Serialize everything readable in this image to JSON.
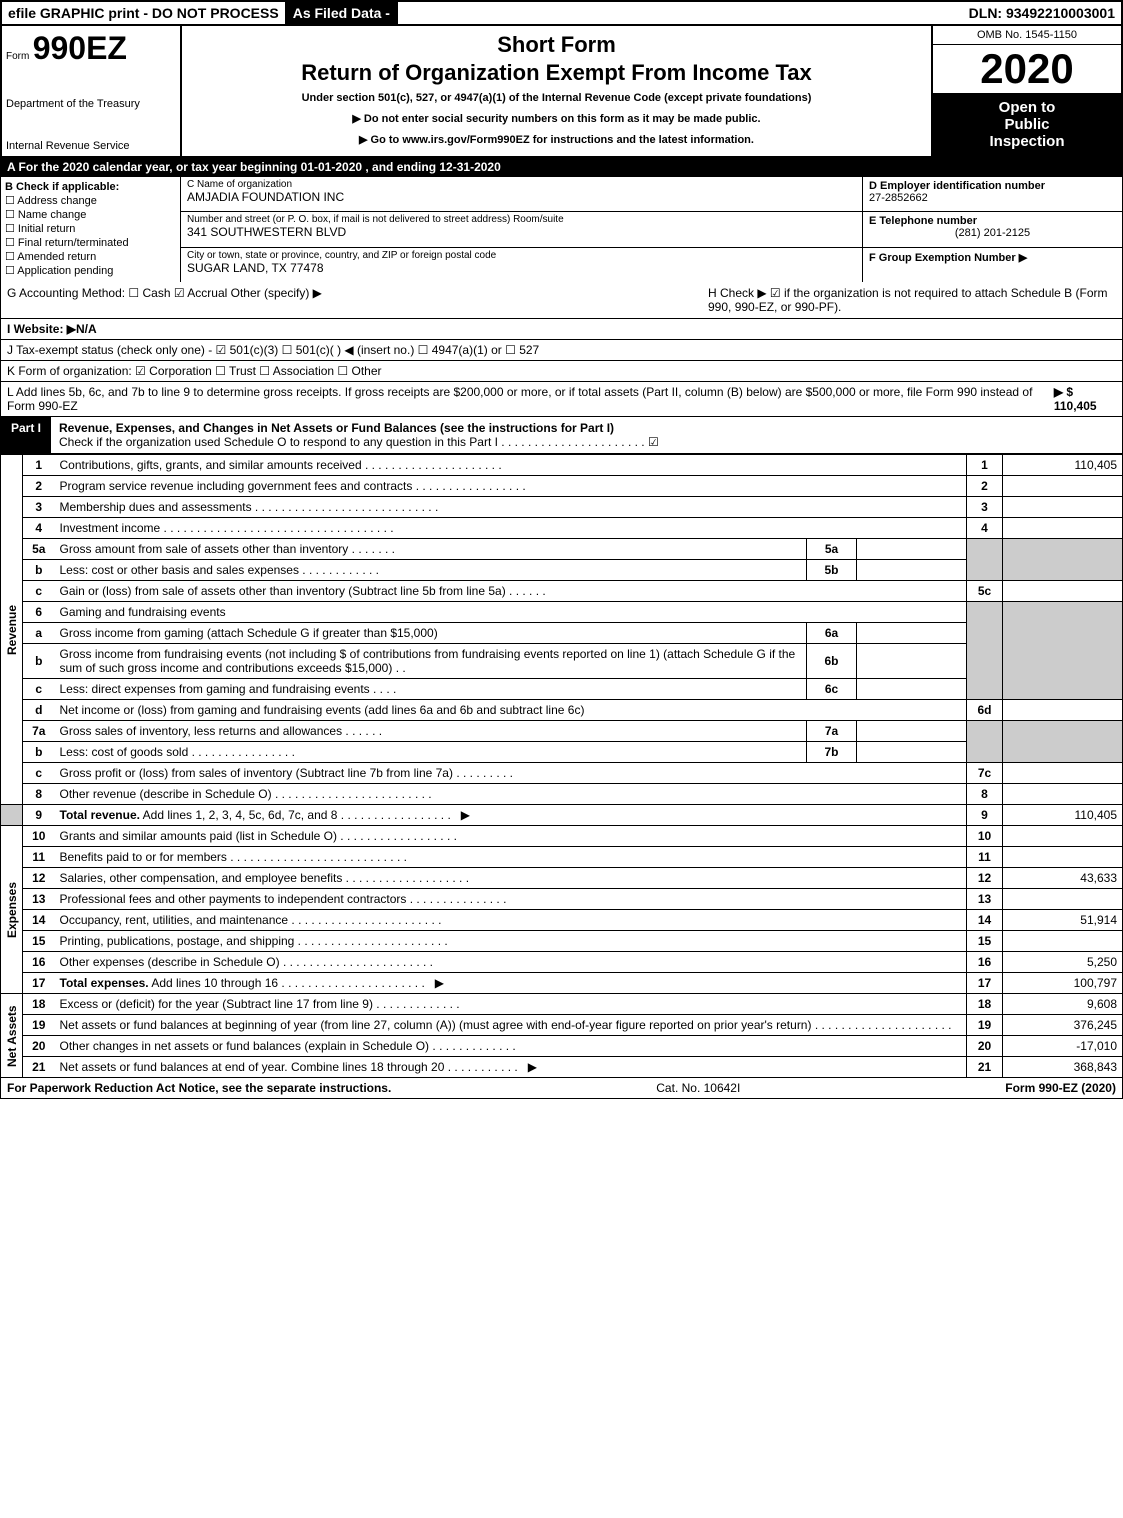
{
  "top": {
    "efile": "efile GRAPHIC print - DO NOT PROCESS",
    "as_filed": "As Filed Data -",
    "dln": "DLN: 93492210003001"
  },
  "header": {
    "form_prefix": "Form",
    "form_num": "990EZ",
    "dept1": "Department of the Treasury",
    "dept2": "Internal Revenue Service",
    "short_form": "Short Form",
    "title": "Return of Organization Exempt From Income Tax",
    "under": "Under section 501(c), 527, or 4947(a)(1) of the Internal Revenue Code (except private foundations)",
    "arrow1": "▶ Do not enter social security numbers on this form as it may be made public.",
    "arrow2": "▶ Go to www.irs.gov/Form990EZ for instructions and the latest information.",
    "omb": "OMB No. 1545-1150",
    "year": "2020",
    "open1": "Open to",
    "open2": "Public",
    "open3": "Inspection"
  },
  "rowA": "A  For the 2020 calendar year, or tax year beginning 01-01-2020 , and ending 12-31-2020",
  "B": {
    "label": "B  Check if applicable:",
    "c1": "☐ Address change",
    "c2": "☐ Name change",
    "c3": "☐ Initial return",
    "c4": "☐ Final return/terminated",
    "c5": "☐ Amended return",
    "c6": "☐ Application pending"
  },
  "C": {
    "name_lbl": "C Name of organization",
    "name": "AMJADIA FOUNDATION INC",
    "addr_lbl": "Number and street (or P. O. box, if mail is not delivered to street address)  Room/suite",
    "addr": "341 SOUTHWESTERN BLVD",
    "city_lbl": "City or town, state or province, country, and ZIP or foreign postal code",
    "city": "SUGAR LAND, TX  77478"
  },
  "right": {
    "D_lbl": "D Employer identification number",
    "D_val": "27-2852662",
    "E_lbl": "E Telephone number",
    "E_val": "(281) 201-2125",
    "F_lbl": "F Group Exemption Number  ▶"
  },
  "G": {
    "left": "G Accounting Method:   ☐ Cash   ☑ Accrual   Other (specify) ▶",
    "right": "H   Check ▶  ☑ if the organization is not required to attach Schedule B (Form 990, 990-EZ, or 990-PF)."
  },
  "I": "I Website: ▶N/A",
  "J": "J Tax-exempt status (check only one) - ☑ 501(c)(3)  ☐ 501(c)(  ) ◀ (insert no.) ☐ 4947(a)(1) or ☐ 527",
  "K": "K Form of organization:   ☑ Corporation  ☐ Trust  ☐ Association  ☐ Other",
  "L": {
    "text": "L Add lines 5b, 6c, and 7b to line 9 to determine gross receipts. If gross receipts are $200,000 or more, or if total assets (Part II, column (B) below) are $500,000 or more, file Form 990 instead of Form 990-EZ",
    "amt": "▶ $ 110,405"
  },
  "part1": {
    "label": "Part I",
    "title": "Revenue, Expenses, and Changes in Net Assets or Fund Balances (see the instructions for Part I)",
    "sub": "Check if the organization used Schedule O to respond to any question in this Part I . . . . . . . . . . . . . . . . . . . . . . ☑"
  },
  "side": {
    "rev": "Revenue",
    "exp": "Expenses",
    "na": "Net Assets"
  },
  "lines": {
    "1": {
      "n": "1",
      "t": "Contributions, gifts, grants, and similar amounts received",
      "r": "1",
      "v": "110,405"
    },
    "2": {
      "n": "2",
      "t": "Program service revenue including government fees and contracts",
      "r": "2",
      "v": ""
    },
    "3": {
      "n": "3",
      "t": "Membership dues and assessments",
      "r": "3",
      "v": ""
    },
    "4": {
      "n": "4",
      "t": "Investment income",
      "r": "4",
      "v": ""
    },
    "5a": {
      "n": "5a",
      "t": "Gross amount from sale of assets other than inventory",
      "s": "5a"
    },
    "5b": {
      "n": "b",
      "t": "Less: cost or other basis and sales expenses",
      "s": "5b"
    },
    "5c": {
      "n": "c",
      "t": "Gain or (loss) from sale of assets other than inventory (Subtract line 5b from line 5a)",
      "r": "5c",
      "v": ""
    },
    "6": {
      "n": "6",
      "t": "Gaming and fundraising events"
    },
    "6a": {
      "n": "a",
      "t": "Gross income from gaming (attach Schedule G if greater than $15,000)",
      "s": "6a"
    },
    "6b": {
      "n": "b",
      "t": "Gross income from fundraising events (not including $                     of contributions from fundraising events reported on line 1) (attach Schedule G if the sum of such gross income and contributions exceeds $15,000)",
      "s": "6b"
    },
    "6c": {
      "n": "c",
      "t": "Less: direct expenses from gaming and fundraising events",
      "s": "6c"
    },
    "6d": {
      "n": "d",
      "t": "Net income or (loss) from gaming and fundraising events (add lines 6a and 6b and subtract line 6c)",
      "r": "6d",
      "v": ""
    },
    "7a": {
      "n": "7a",
      "t": "Gross sales of inventory, less returns and allowances",
      "s": "7a"
    },
    "7b": {
      "n": "b",
      "t": "Less: cost of goods sold",
      "s": "7b"
    },
    "7c": {
      "n": "c",
      "t": "Gross profit or (loss) from sales of inventory (Subtract line 7b from line 7a)",
      "r": "7c",
      "v": ""
    },
    "8": {
      "n": "8",
      "t": "Other revenue (describe in Schedule O)",
      "r": "8",
      "v": ""
    },
    "9": {
      "n": "9",
      "t": "Total revenue. Add lines 1, 2, 3, 4, 5c, 6d, 7c, and 8",
      "r": "9",
      "v": "110,405",
      "arrow": "▶"
    },
    "10": {
      "n": "10",
      "t": "Grants and similar amounts paid (list in Schedule O)",
      "r": "10",
      "v": ""
    },
    "11": {
      "n": "11",
      "t": "Benefits paid to or for members",
      "r": "11",
      "v": ""
    },
    "12": {
      "n": "12",
      "t": "Salaries, other compensation, and employee benefits",
      "r": "12",
      "v": "43,633"
    },
    "13": {
      "n": "13",
      "t": "Professional fees and other payments to independent contractors",
      "r": "13",
      "v": ""
    },
    "14": {
      "n": "14",
      "t": "Occupancy, rent, utilities, and maintenance",
      "r": "14",
      "v": "51,914"
    },
    "15": {
      "n": "15",
      "t": "Printing, publications, postage, and shipping",
      "r": "15",
      "v": ""
    },
    "16": {
      "n": "16",
      "t": "Other expenses (describe in Schedule O)",
      "r": "16",
      "v": "5,250"
    },
    "17": {
      "n": "17",
      "t": "Total expenses. Add lines 10 through 16",
      "r": "17",
      "v": "100,797",
      "arrow": "▶"
    },
    "18": {
      "n": "18",
      "t": "Excess or (deficit) for the year (Subtract line 17 from line 9)",
      "r": "18",
      "v": "9,608"
    },
    "19": {
      "n": "19",
      "t": "Net assets or fund balances at beginning of year (from line 27, column (A)) (must agree with end-of-year figure reported on prior year's return)",
      "r": "19",
      "v": "376,245"
    },
    "20": {
      "n": "20",
      "t": "Other changes in net assets or fund balances (explain in Schedule O)",
      "r": "20",
      "v": "-17,010"
    },
    "21": {
      "n": "21",
      "t": "Net assets or fund balances at end of year. Combine lines 18 through 20",
      "r": "21",
      "v": "368,843",
      "arrow": "▶"
    }
  },
  "footer": {
    "left": "For Paperwork Reduction Act Notice, see the separate instructions.",
    "cat": "Cat. No. 10642I",
    "right": "Form 990-EZ (2020)"
  }
}
